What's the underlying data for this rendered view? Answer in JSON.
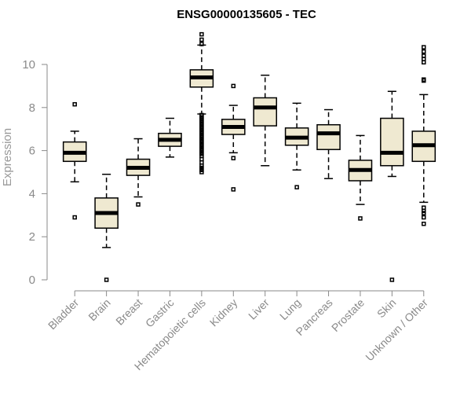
{
  "chart_data": {
    "type": "boxplot",
    "title": "ENSG00000135605 - TEC",
    "ylabel": "Expression",
    "xlabel": "",
    "ylim": [
      0,
      11.5
    ],
    "yticks": [
      0,
      2,
      4,
      6,
      8,
      10
    ],
    "box_fill": "#efe9d1",
    "categories": [
      "Bladder",
      "Brain",
      "Breast",
      "Gastric",
      "Hematopoietic cells",
      "Kidney",
      "Liver",
      "Lung",
      "Pancreas",
      "Prostate",
      "Skin",
      "Unknown / Other"
    ],
    "boxes": [
      {
        "min": 4.55,
        "q1": 5.5,
        "median": 5.9,
        "q3": 6.4,
        "max": 6.9,
        "outliers": [
          8.15,
          2.9
        ]
      },
      {
        "min": 1.5,
        "q1": 2.4,
        "median": 3.1,
        "q3": 3.8,
        "max": 4.9,
        "outliers": [
          0.0
        ]
      },
      {
        "min": 3.85,
        "q1": 4.85,
        "median": 5.2,
        "q3": 5.6,
        "max": 6.55,
        "outliers": [
          3.5
        ]
      },
      {
        "min": 5.7,
        "q1": 6.2,
        "median": 6.5,
        "q3": 6.8,
        "max": 7.5,
        "outliers": []
      },
      {
        "min": 7.7,
        "q1": 8.95,
        "median": 9.4,
        "q3": 9.75,
        "max": 10.9,
        "outliers": [
          11.4,
          11.15,
          10.95,
          7.65,
          7.55,
          7.45,
          7.35,
          7.25,
          7.15,
          7.05,
          6.95,
          6.85,
          6.75,
          6.65,
          6.55,
          6.45,
          6.35,
          6.25,
          6.15,
          6.05,
          5.95,
          5.85,
          5.75,
          5.6,
          5.45,
          5.3,
          5.2,
          5.1,
          5.0
        ]
      },
      {
        "min": 5.9,
        "q1": 6.75,
        "median": 7.1,
        "q3": 7.45,
        "max": 8.1,
        "outliers": [
          9.0,
          5.65,
          4.2
        ]
      },
      {
        "min": 5.3,
        "q1": 7.15,
        "median": 8.0,
        "q3": 8.45,
        "max": 9.5,
        "outliers": []
      },
      {
        "min": 5.1,
        "q1": 6.25,
        "median": 6.6,
        "q3": 7.05,
        "max": 8.2,
        "outliers": [
          4.3
        ]
      },
      {
        "min": 4.7,
        "q1": 6.05,
        "median": 6.8,
        "q3": 7.2,
        "max": 7.9,
        "outliers": []
      },
      {
        "min": 3.5,
        "q1": 4.6,
        "median": 5.1,
        "q3": 5.55,
        "max": 6.7,
        "outliers": [
          2.85
        ]
      },
      {
        "min": 4.8,
        "q1": 5.3,
        "median": 5.9,
        "q3": 7.5,
        "max": 8.75,
        "outliers": [
          0.0
        ]
      },
      {
        "min": 3.6,
        "q1": 5.5,
        "median": 6.25,
        "q3": 6.9,
        "max": 8.6,
        "outliers": [
          10.8,
          10.6,
          10.4,
          10.25,
          10.1,
          9.3,
          9.25,
          3.35,
          3.2,
          3.1,
          2.9,
          2.6
        ]
      }
    ]
  }
}
